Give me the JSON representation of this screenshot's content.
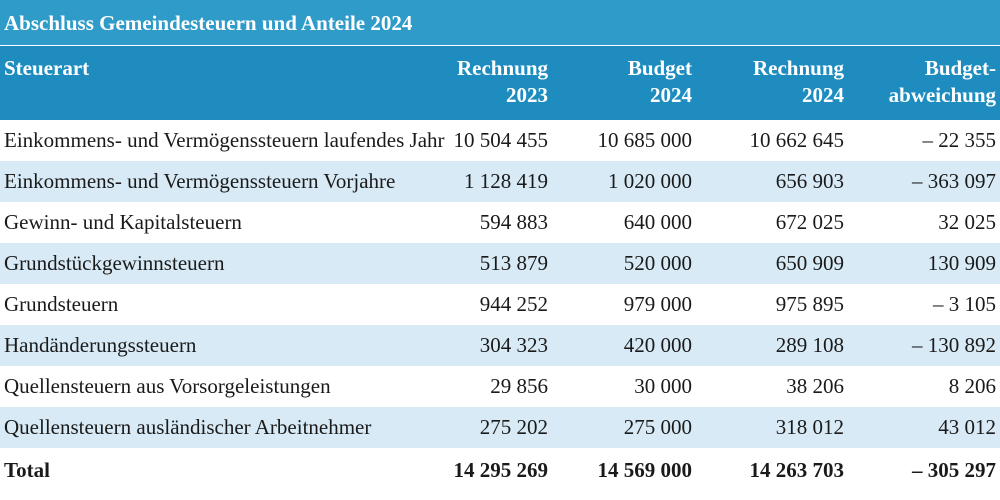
{
  "title": "Abschluss Gemeindesteuern und Anteile 2024",
  "header": {
    "col0": "Steuerart",
    "col1_line1": "Rechnung",
    "col1_line2": "2023",
    "col2_line1": "Budget",
    "col2_line2": "2024",
    "col3_line1": "Rechnung",
    "col3_line2": "2024",
    "col4_line1": "Budget-",
    "col4_line2": "abweichung"
  },
  "rows": [
    {
      "label": "Einkommens- und Vermögenssteuern laufendes Jahr",
      "r2023": "10 504 455",
      "b2024": "10 685 000",
      "r2024": "10 662 645",
      "diff": "– 22 355"
    },
    {
      "label": "Einkommens- und Vermögenssteuern Vorjahre",
      "r2023": "1 128 419",
      "b2024": "1 020 000",
      "r2024": "656 903",
      "diff": "– 363 097"
    },
    {
      "label": "Gewinn- und Kapitalsteuern",
      "r2023": "594 883",
      "b2024": "640 000",
      "r2024": "672 025",
      "diff": "32 025"
    },
    {
      "label": "Grundstückgewinnsteuern",
      "r2023": "513 879",
      "b2024": "520 000",
      "r2024": "650 909",
      "diff": "130 909"
    },
    {
      "label": "Grundsteuern",
      "r2023": "944 252",
      "b2024": "979 000",
      "r2024": "975 895",
      "diff": "– 3 105"
    },
    {
      "label": "Handänderungssteuern",
      "r2023": "304 323",
      "b2024": "420 000",
      "r2024": "289 108",
      "diff": "– 130 892"
    },
    {
      "label": "Quellensteuern aus Vorsorgeleistungen",
      "r2023": "29 856",
      "b2024": "30 000",
      "r2024": "38 206",
      "diff": "8 206"
    },
    {
      "label": "Quellensteuern ausländischer Arbeitnehmer",
      "r2023": "275 202",
      "b2024": "275 000",
      "r2024": "318 012",
      "diff": "43 012"
    }
  ],
  "total": {
    "label": "Total",
    "r2023": "14 295 269",
    "b2024": "14 569 000",
    "r2024": "14 263 703",
    "diff": "– 305 297"
  },
  "colors": {
    "title_bg": "#2f9bc9",
    "header_bg": "#1e8cbf",
    "alt_row_bg": "#d7eaf5"
  }
}
